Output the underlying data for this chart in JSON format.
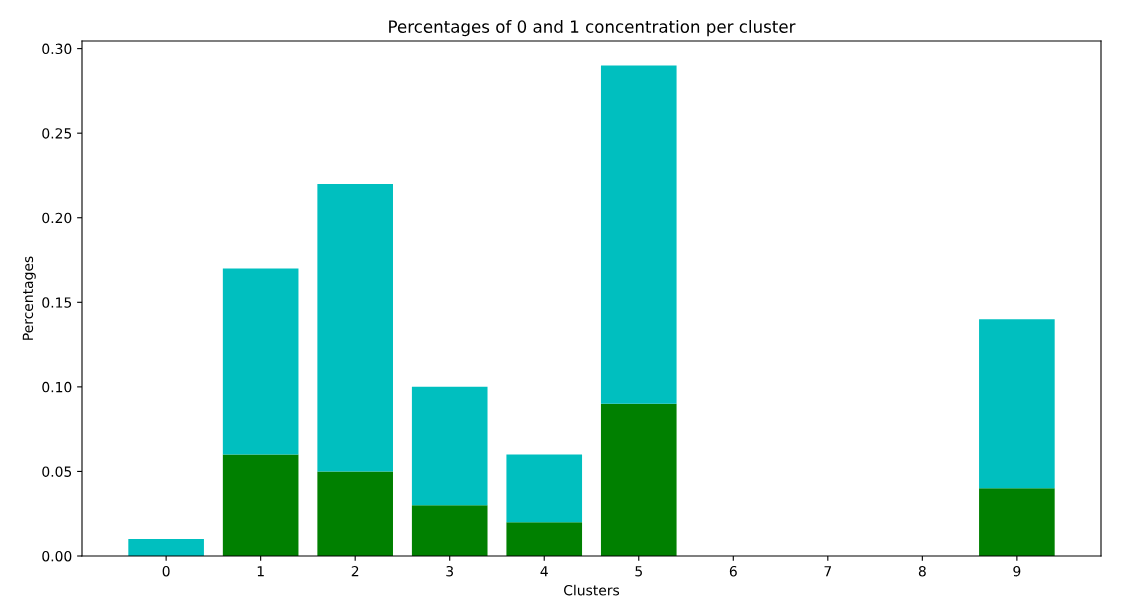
{
  "chart_data": {
    "type": "bar",
    "title": "Percentages of 0 and 1 concentration per cluster",
    "xlabel": "Clusters",
    "ylabel": "Percentages",
    "categories": [
      "0",
      "1",
      "2",
      "3",
      "4",
      "5",
      "6",
      "7",
      "8",
      "9"
    ],
    "stacked": true,
    "series": [
      {
        "color": "#008000",
        "values": [
          0,
          0.06,
          0.05,
          0.03,
          0.02,
          0.09,
          0,
          0,
          0,
          0.04
        ]
      },
      {
        "color": "#00bfbf",
        "values": [
          0.01,
          0.11,
          0.17,
          0.07,
          0.04,
          0.2,
          0,
          0,
          0,
          0.1
        ]
      }
    ],
    "ylim": [
      0,
      0.3045
    ],
    "yticks": [
      {
        "value": 0,
        "label": "0.00"
      },
      {
        "value": 0.05,
        "label": "0.05"
      },
      {
        "value": 0.1,
        "label": "0.10"
      },
      {
        "value": 0.15,
        "label": "0.15"
      },
      {
        "value": 0.2,
        "label": "0.20"
      },
      {
        "value": 0.25,
        "label": "0.25"
      },
      {
        "value": 0.3,
        "label": "0.30"
      }
    ],
    "grid": false
  }
}
